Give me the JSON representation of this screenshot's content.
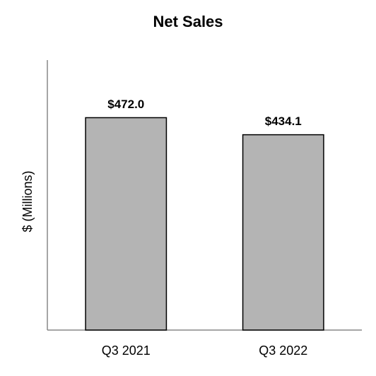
{
  "chart_data": {
    "type": "bar",
    "title": "Net Sales",
    "y_label": "$ (Millions)",
    "categories": [
      "Q3 2021",
      "Q3 2022"
    ],
    "values": [
      472.0,
      434.1
    ],
    "value_labels": [
      "$472.0",
      "$434.1"
    ],
    "color": "#b4b4b4",
    "ylim": [
      0,
      600
    ]
  }
}
